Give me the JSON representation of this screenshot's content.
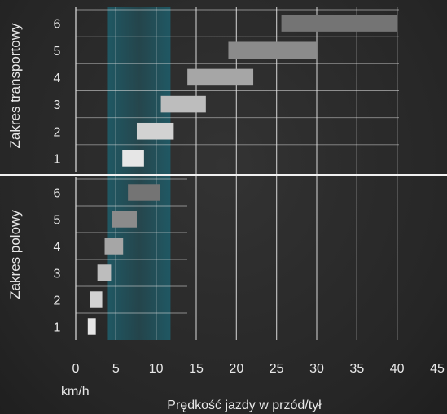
{
  "chart_data": {
    "type": "bar",
    "orientation": "horizontal-range",
    "xlabel": "Prędkość jazdy w przód/tył",
    "xunit": "km/h",
    "xlim": [
      0,
      45
    ],
    "xticks": [
      0,
      5,
      10,
      15,
      20,
      25,
      30,
      35,
      40,
      45
    ],
    "grid": true,
    "highlight_band": {
      "x": [
        4,
        11.8
      ],
      "color": "#1f5a66"
    },
    "groups": [
      {
        "name": "Zakres transportowy",
        "gears": [
          {
            "gear": "1",
            "x": [
              5.8,
              8.5
            ],
            "color": "#e6e6e6"
          },
          {
            "gear": "2",
            "x": [
              7.6,
              12.2
            ],
            "color": "#d2d2d2"
          },
          {
            "gear": "3",
            "x": [
              10.6,
              16.2
            ],
            "color": "#bdbdbd"
          },
          {
            "gear": "4",
            "x": [
              13.9,
              22.1
            ],
            "color": "#a6a6a6"
          },
          {
            "gear": "5",
            "x": [
              19.0,
              30.0
            ],
            "color": "#8b8b8b"
          },
          {
            "gear": "6",
            "x": [
              25.6,
              40.0
            ],
            "color": "#747474"
          }
        ]
      },
      {
        "name": "Zakres polowy",
        "gears": [
          {
            "gear": "1",
            "x": [
              1.5,
              2.5
            ],
            "color": "#e6e6e6"
          },
          {
            "gear": "2",
            "x": [
              1.8,
              3.3
            ],
            "color": "#d2d2d2"
          },
          {
            "gear": "3",
            "x": [
              2.7,
              4.4
            ],
            "color": "#bdbdbd"
          },
          {
            "gear": "4",
            "x": [
              3.6,
              5.9
            ],
            "color": "#a6a6a6"
          },
          {
            "gear": "5",
            "x": [
              4.5,
              7.6
            ],
            "color": "#8b8b8b"
          },
          {
            "gear": "6",
            "x": [
              6.5,
              10.5
            ],
            "color": "#747474"
          }
        ]
      }
    ]
  }
}
